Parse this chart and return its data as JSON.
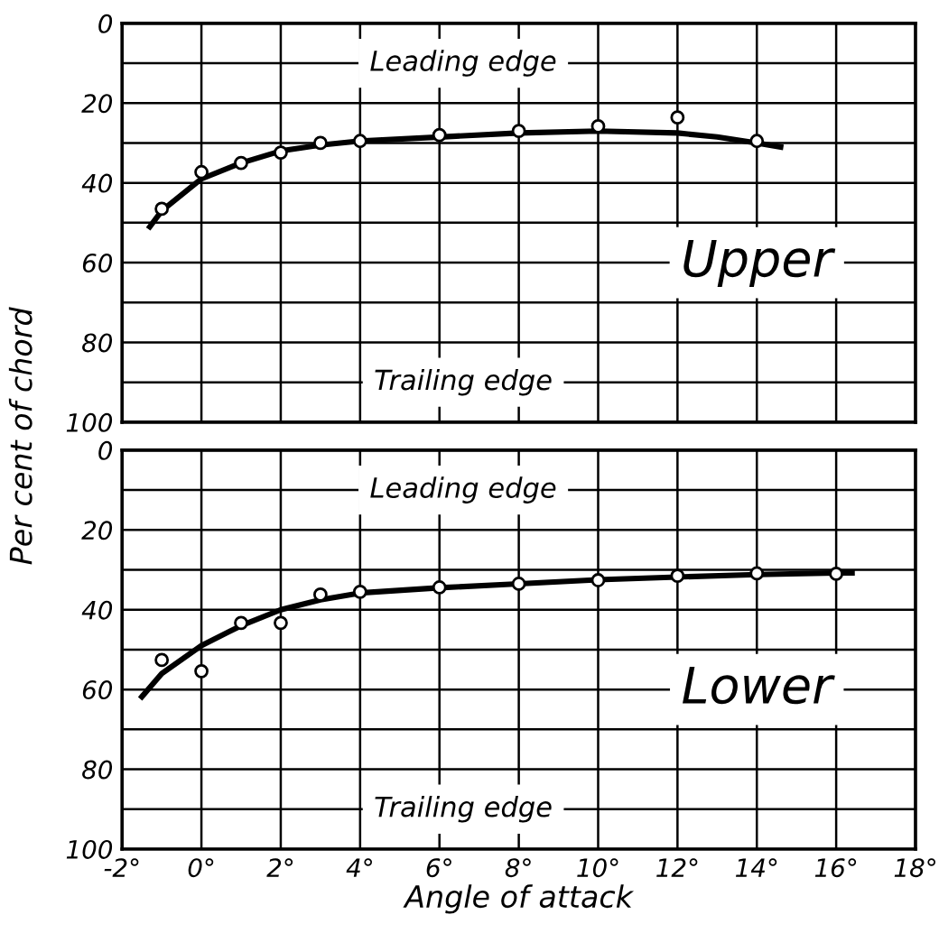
{
  "chart_data": [
    {
      "type": "scatter",
      "ylabel": "Per cent of chord",
      "tick_labels": "y",
      "grid": true,
      "legend": false,
      "xlim": [
        -2,
        18
      ],
      "xticks": [
        -2,
        0,
        2,
        4,
        6,
        8,
        10,
        12,
        14,
        16,
        18
      ],
      "ylim": [
        100,
        0
      ],
      "yticks": [
        0,
        {
          "value": 10,
          "label": null
        },
        20,
        {
          "value": 30,
          "label": null
        },
        40,
        {
          "value": 50,
          "label": null
        },
        60,
        {
          "value": 70,
          "label": null
        },
        80,
        {
          "value": 90,
          "label": null
        },
        100
      ],
      "annotations": [
        "Leading edge",
        "Trailing edge",
        "Upper"
      ],
      "series": [
        {
          "marker": "circle",
          "color": "#000000",
          "x": [
            -1,
            0,
            1,
            2,
            3,
            4,
            6,
            8,
            10,
            12,
            14
          ],
          "values": [
            46.5,
            37.3,
            35,
            32.4,
            30,
            29.5,
            28,
            27,
            25.8,
            23.6,
            29.5
          ]
        },
        {
          "type": "line",
          "marker": "none",
          "line_style": "solid",
          "color": "#000000",
          "x": [
            -1.3,
            -1,
            0,
            1,
            2,
            3,
            4,
            6,
            8,
            10,
            12,
            13,
            14,
            14.6
          ],
          "values": [
            51,
            47,
            39,
            35,
            32,
            30.5,
            29.5,
            28.5,
            27.5,
            27,
            27.5,
            28.5,
            30,
            31
          ]
        }
      ]
    },
    {
      "type": "scatter",
      "xlabel": "Angle of attack",
      "grid": true,
      "legend": false,
      "xlim": [
        -2,
        18
      ],
      "xticks": [
        {
          "value": -2,
          "label": "-2°"
        },
        {
          "value": 0,
          "label": "0°"
        },
        {
          "value": 2,
          "label": "2°"
        },
        {
          "value": 4,
          "label": "4°"
        },
        {
          "value": 6,
          "label": "6°"
        },
        {
          "value": 8,
          "label": "8°"
        },
        {
          "value": 10,
          "label": "10°"
        },
        {
          "value": 12,
          "label": "12°"
        },
        {
          "value": 14,
          "label": "14°"
        },
        {
          "value": 16,
          "label": "16°"
        },
        {
          "value": 18,
          "label": "18°"
        }
      ],
      "ylim": [
        100,
        0
      ],
      "yticks": [
        0,
        {
          "value": 10,
          "label": null
        },
        20,
        {
          "value": 30,
          "label": null
        },
        40,
        {
          "value": 50,
          "label": null
        },
        60,
        {
          "value": 70,
          "label": null
        },
        80,
        {
          "value": 90,
          "label": null
        },
        100
      ],
      "annotations": [
        "Leading edge",
        "Trailing edge",
        "Lower"
      ],
      "series": [
        {
          "marker": "circle",
          "color": "#000000",
          "x": [
            -1,
            0,
            1,
            2,
            3,
            4,
            6,
            8,
            10,
            12,
            14,
            16
          ],
          "values": [
            52.6,
            55.4,
            43.3,
            43.3,
            36.2,
            35.5,
            34.4,
            33.5,
            32.6,
            31.5,
            30.9,
            31
          ]
        },
        {
          "type": "line",
          "marker": "none",
          "line_style": "solid",
          "color": "#000000",
          "x": [
            -1.5,
            -1,
            0,
            1,
            2,
            3,
            4,
            6,
            8,
            10,
            12,
            14,
            16,
            16.4
          ],
          "values": [
            61.8,
            56,
            49,
            44,
            40,
            37.5,
            35.8,
            34.5,
            33.5,
            32.5,
            31.8,
            31.2,
            30.8,
            30.8
          ]
        }
      ]
    }
  ]
}
